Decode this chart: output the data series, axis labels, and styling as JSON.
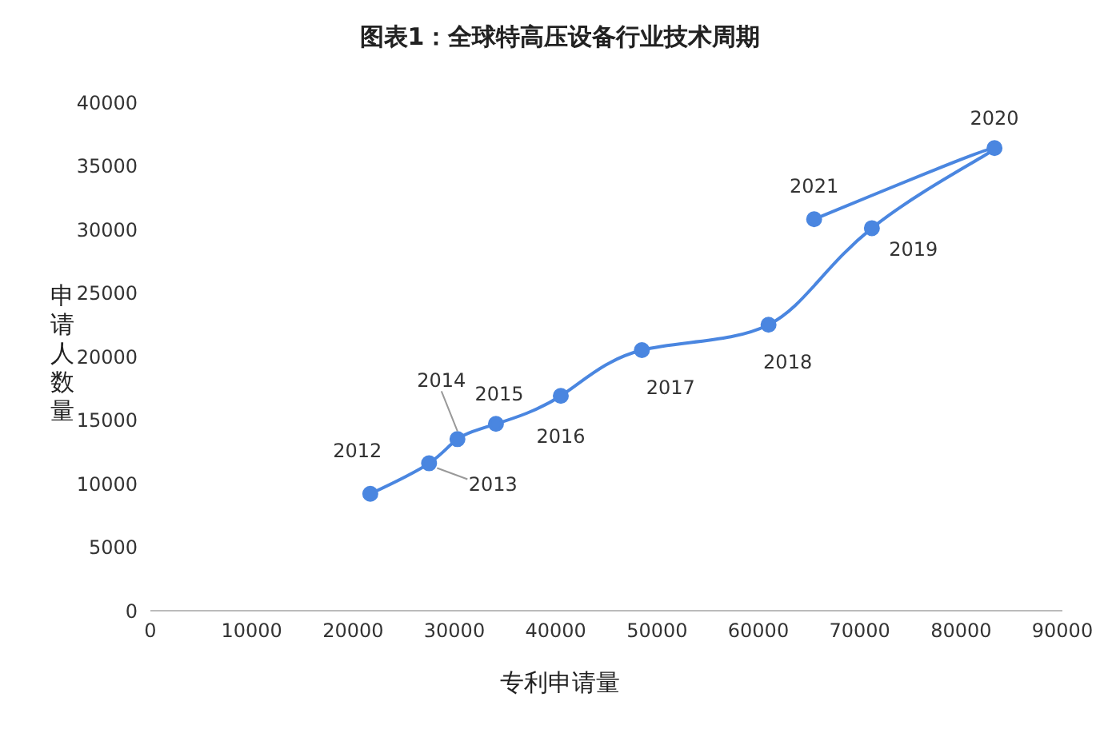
{
  "chart_data": {
    "type": "line",
    "title": "图表1：全球特高压设备行业技术周期",
    "xlabel": "专利申请量",
    "ylabel": "申请人数量",
    "x": [
      21700,
      27500,
      30300,
      34100,
      40500,
      48500,
      61000,
      71200,
      83300,
      65500
    ],
    "series": [
      {
        "color": "#4a86e0",
        "values": [
          9200,
          11600,
          13500,
          14700,
          16900,
          20500,
          22500,
          30100,
          36400,
          30800
        ]
      }
    ],
    "xlim": [
      0,
      90000
    ],
    "xticks": [
      0,
      10000,
      20000,
      30000,
      40000,
      50000,
      60000,
      70000,
      80000,
      90000
    ],
    "ylim": [
      0,
      40000
    ],
    "yticks": [
      0,
      5000,
      10000,
      15000,
      20000,
      25000,
      30000,
      35000,
      40000
    ],
    "marker": "circle",
    "line_style": "solid",
    "grid": false,
    "legend": false,
    "annotations": [
      {
        "text": "2012",
        "x": 21700,
        "y": 9200
      },
      {
        "text": "2013",
        "x": 27500,
        "y": 11600
      },
      {
        "text": "2014",
        "x": 30300,
        "y": 13500
      },
      {
        "text": "2015",
        "x": 34100,
        "y": 14700
      },
      {
        "text": "2016",
        "x": 40500,
        "y": 16900
      },
      {
        "text": "2017",
        "x": 48500,
        "y": 20500
      },
      {
        "text": "2018",
        "x": 61000,
        "y": 22500
      },
      {
        "text": "2019",
        "x": 71200,
        "y": 30100
      },
      {
        "text": "2020",
        "x": 83300,
        "y": 36400
      },
      {
        "text": "2021",
        "x": 65500,
        "y": 30800
      }
    ]
  }
}
